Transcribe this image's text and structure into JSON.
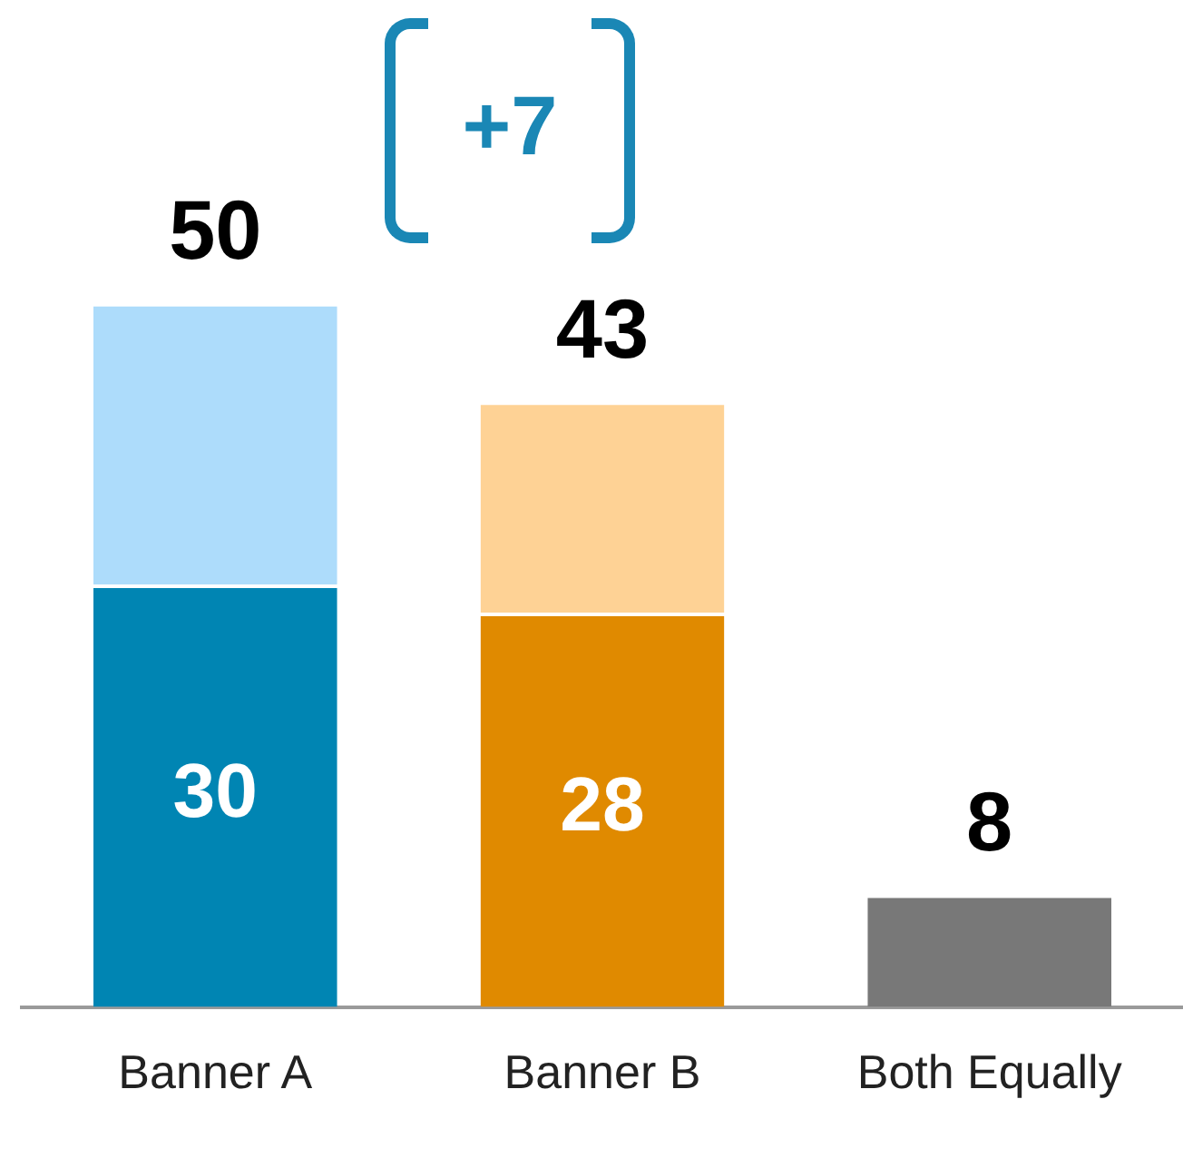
{
  "chart_data": {
    "type": "bar",
    "stacked": true,
    "categories": [
      "Banner A",
      "Banner B",
      "Both Equally"
    ],
    "series": [
      {
        "colors": [
          "#0085b3",
          "#e08a00",
          "#787878"
        ],
        "values": [
          30,
          28,
          8
        ],
        "value_labels": [
          "30",
          "28",
          null
        ]
      },
      {
        "colors": [
          "#addcfb",
          "#fed295",
          null
        ],
        "values": [
          20,
          15,
          null
        ]
      }
    ],
    "totals": [
      "50",
      "43",
      "8"
    ],
    "annotations": [
      "+7"
    ]
  }
}
